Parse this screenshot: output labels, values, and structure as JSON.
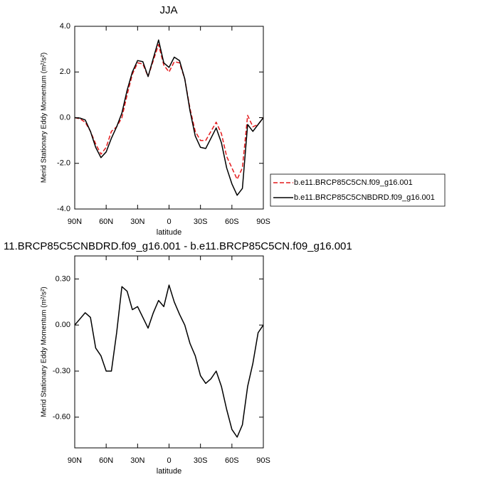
{
  "chart_data": [
    {
      "type": "line",
      "title": "JJA",
      "xlabel": "latitude",
      "ylabel": "Merid Stationary Eddy Momentum (m²/s²)",
      "x": [
        90,
        85,
        80,
        75,
        70,
        65,
        60,
        55,
        50,
        45,
        40,
        35,
        30,
        25,
        20,
        15,
        10,
        5,
        0,
        -5,
        -10,
        -15,
        -20,
        -25,
        -30,
        -35,
        -40,
        -45,
        -50,
        -55,
        -60,
        -65,
        -70,
        -75,
        -80,
        -85,
        -90
      ],
      "series": [
        {
          "name": "b.e11.BRCP85C5CN.f09_g16.001",
          "color": "#e41a1c",
          "style": "dashed",
          "values": [
            0,
            -0.05,
            -0.2,
            -0.6,
            -1.15,
            -1.6,
            -1.3,
            -0.6,
            -0.4,
            0,
            1.0,
            1.9,
            2.4,
            2.35,
            1.8,
            2.5,
            3.2,
            2.3,
            2.0,
            2.45,
            2.4,
            1.7,
            0.4,
            -0.6,
            -1.0,
            -1.0,
            -0.6,
            -0.2,
            -0.7,
            -1.7,
            -2.2,
            -2.7,
            -2.2,
            0.1,
            -0.4,
            -0.3,
            0
          ]
        },
        {
          "name": "b.e11.BRCP85C5CNBDRD.f09_g16.001",
          "color": "#000000",
          "style": "solid",
          "values": [
            0,
            -0.02,
            -0.1,
            -0.6,
            -1.3,
            -1.75,
            -1.5,
            -0.9,
            -0.4,
            0.2,
            1.2,
            2.0,
            2.5,
            2.45,
            1.8,
            2.6,
            3.4,
            2.4,
            2.2,
            2.65,
            2.5,
            1.7,
            0.3,
            -0.8,
            -1.3,
            -1.35,
            -0.9,
            -0.45,
            -1.1,
            -2.2,
            -2.9,
            -3.4,
            -3.1,
            -0.3,
            -0.6,
            -0.3,
            0
          ]
        }
      ],
      "xlim": [
        90,
        -90
      ],
      "xticks": [
        {
          "value": 90,
          "label": "90N"
        },
        {
          "value": 60,
          "label": "60N"
        },
        {
          "value": 30,
          "label": "30N"
        },
        0,
        {
          "value": -30,
          "label": "30S"
        },
        {
          "value": -60,
          "label": "60S"
        },
        {
          "value": -90,
          "label": "90S"
        }
      ],
      "ylim": [
        -4,
        4
      ],
      "yticks": [
        {
          "value": -4,
          "label": "-4.0"
        },
        {
          "value": -2,
          "label": "-2.0"
        },
        {
          "value": 0,
          "label": "0.0"
        },
        {
          "value": 2,
          "label": "2.0"
        },
        {
          "value": 4,
          "label": "4.0"
        }
      ]
    },
    {
      "type": "line",
      "title": "11.BRCP85C5CNBDRD.f09_g16.001 - b.e11.BRCP85C5CN.f09_g16.001",
      "xlabel": "latitude",
      "ylabel": "Merid Stationary Eddy Momentum (m²/s²)",
      "x": [
        90,
        85,
        80,
        75,
        70,
        65,
        60,
        55,
        50,
        45,
        40,
        35,
        30,
        25,
        20,
        15,
        10,
        5,
        0,
        -5,
        -10,
        -15,
        -20,
        -25,
        -30,
        -35,
        -40,
        -45,
        -50,
        -55,
        -60,
        -65,
        -70,
        -75,
        -80,
        -85,
        -90
      ],
      "color": "#000000",
      "values": [
        0,
        0.04,
        0.08,
        0.05,
        -0.15,
        -0.2,
        -0.3,
        -0.3,
        -0.05,
        0.25,
        0.22,
        0.1,
        0.12,
        0.05,
        -0.02,
        0.08,
        0.16,
        0.12,
        0.26,
        0.15,
        0.07,
        0,
        -0.12,
        -0.2,
        -0.33,
        -0.38,
        -0.35,
        -0.3,
        -0.4,
        -0.55,
        -0.68,
        -0.73,
        -0.65,
        -0.4,
        -0.25,
        -0.05,
        0
      ],
      "xlim": [
        90,
        -90
      ],
      "xticks": [
        {
          "value": 90,
          "label": "90N"
        },
        {
          "value": 60,
          "label": "60N"
        },
        {
          "value": 30,
          "label": "30N"
        },
        0,
        {
          "value": -30,
          "label": "30S"
        },
        {
          "value": -60,
          "label": "60S"
        },
        {
          "value": -90,
          "label": "90S"
        }
      ],
      "ylim": [
        -0.8,
        0.45
      ],
      "yticks": [
        {
          "value": -0.6,
          "label": "-0.60"
        },
        {
          "value": -0.3,
          "label": "-0.30"
        },
        {
          "value": 0,
          "label": "0.00"
        },
        {
          "value": 0.3,
          "label": "0.30"
        }
      ]
    }
  ]
}
